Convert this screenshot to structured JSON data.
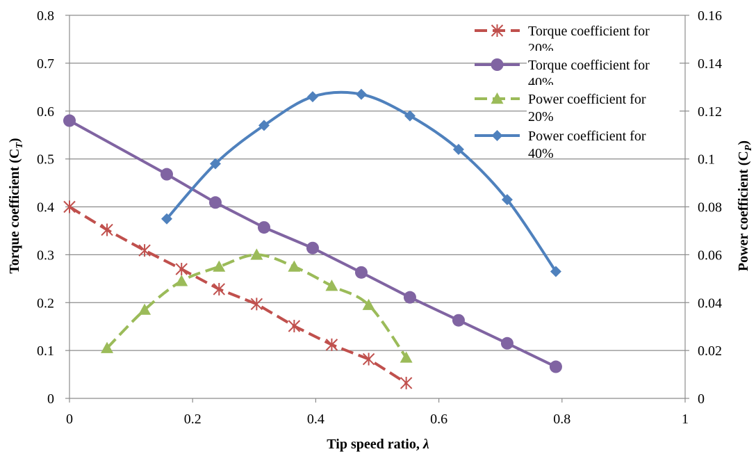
{
  "chart_data": {
    "type": "line",
    "title": "",
    "xlabel": "Tip speed ratio, λ",
    "xlabel_parts": [
      "Tip speed ratio, ",
      "λ"
    ],
    "ylabel": "Torque coefficient (CT)",
    "ylabel_parts": [
      "Torque coefficient (C",
      "T",
      ")"
    ],
    "y2label": "Power coefficient (CP)",
    "y2label_parts": [
      "Power coefficient (C",
      "P",
      ")"
    ],
    "xlim": [
      0,
      1
    ],
    "ylim": [
      0,
      0.8
    ],
    "y2lim": [
      0,
      0.16
    ],
    "x_ticks": [
      "0",
      "0.2",
      "0.4",
      "0.6",
      "0.8",
      "1"
    ],
    "y_ticks": [
      "0",
      "0.1",
      "0.2",
      "0.3",
      "0.4",
      "0.5",
      "0.6",
      "0.7",
      "0.8"
    ],
    "y2_ticks": [
      "0",
      "0.02",
      "0.04",
      "0.06",
      "0.08",
      "0.1",
      "0.12",
      "0.14",
      "0.16"
    ],
    "grid": "horizontal",
    "legend_position": "top-right",
    "series": [
      {
        "name": "Torque coefficient for 20%",
        "legend_lines": [
          "Torque coefficient for",
          "20%"
        ],
        "axis": "left",
        "color": "#c0504d",
        "marker": "asterisk",
        "dashed": true,
        "smooth": false,
        "x": [
          0.0,
          0.061,
          0.122,
          0.182,
          0.243,
          0.304,
          0.365,
          0.426,
          0.486,
          0.547
        ],
        "y": [
          0.4,
          0.352,
          0.309,
          0.27,
          0.228,
          0.197,
          0.151,
          0.112,
          0.082,
          0.032
        ]
      },
      {
        "name": "Torque coefficient for 40%",
        "legend_lines": [
          "Torque coefficient for",
          "40%"
        ],
        "axis": "left",
        "color": "#8064a2",
        "marker": "circle",
        "dashed": false,
        "smooth": false,
        "x": [
          0.0,
          0.158,
          0.237,
          0.316,
          0.395,
          0.474,
          0.553,
          0.632,
          0.711,
          0.79
        ],
        "y": [
          0.58,
          0.468,
          0.409,
          0.357,
          0.314,
          0.263,
          0.211,
          0.163,
          0.115,
          0.066
        ]
      },
      {
        "name": "Power coefficient for 20%",
        "legend_lines": [
          "Power coefficient for",
          "20%"
        ],
        "axis": "right",
        "color": "#9bbb59",
        "marker": "triangle",
        "dashed": true,
        "smooth": true,
        "x": [
          0.061,
          0.122,
          0.182,
          0.243,
          0.304,
          0.365,
          0.426,
          0.486,
          0.547
        ],
        "y": [
          0.021,
          0.037,
          0.049,
          0.055,
          0.06,
          0.055,
          0.047,
          0.039,
          0.017
        ]
      },
      {
        "name": "Power coefficient for 40%",
        "legend_lines": [
          "Power coefficient for",
          "40%"
        ],
        "axis": "right",
        "color": "#4f81bd",
        "marker": "diamond",
        "dashed": false,
        "smooth": true,
        "x": [
          0.158,
          0.237,
          0.316,
          0.395,
          0.474,
          0.553,
          0.632,
          0.711,
          0.79
        ],
        "y": [
          0.075,
          0.098,
          0.114,
          0.126,
          0.127,
          0.118,
          0.104,
          0.083,
          0.053
        ]
      }
    ]
  }
}
